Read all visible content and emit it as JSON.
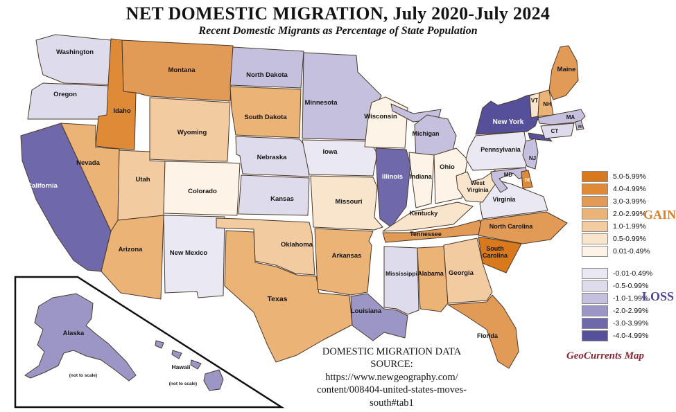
{
  "title": "NET DOMESTIC MIGRATION, July 2020-July 2024",
  "subtitle": "Recent Domestic Migrants as Percentage of State Population",
  "legend": {
    "gain_label": "GAIN",
    "gain_color": "#D97E26",
    "loss_label": "LOSS",
    "loss_color": "#4B4596",
    "gain": [
      {
        "range": "5.0-5.99%",
        "color": "#D9791E"
      },
      {
        "range": "4.0-4.99%",
        "color": "#DF8A37"
      },
      {
        "range": "3.0-3.99%",
        "color": "#E29A57"
      },
      {
        "range": "2.0-2.99%",
        "color": "#ECB377"
      },
      {
        "range": "1.0-1.99%",
        "color": "#F3CBA0"
      },
      {
        "range": "0.5-0.99%",
        "color": "#F9E4CC"
      },
      {
        "range": "0.01-0.49%",
        "color": "#FDF3E6"
      }
    ],
    "loss": [
      {
        "range": "-0.01-0.49%",
        "color": "#E9E8F3"
      },
      {
        "range": "-0.5-0.99%",
        "color": "#DEDCEC"
      },
      {
        "range": "-1.0-1.99%",
        "color": "#C4C0DE"
      },
      {
        "range": "-2.0-2.99%",
        "color": "#9C96C6"
      },
      {
        "range": "-3.0-3.99%",
        "color": "#6F69AB"
      },
      {
        "range": "-4.0-4.99%",
        "color": "#56509B"
      }
    ]
  },
  "source_lines": [
    "DOMESTIC MIGRATION DATA",
    "SOURCE:",
    "https://www.newgeography.com/",
    "content/008404-united-states-moves-",
    "south#tab1"
  ],
  "attribution": "GeoCurrents Map",
  "attribution_color": "#8B2332",
  "map": {
    "states": [
      {
        "abbr": "WA",
        "name": "Washington",
        "label": "Washington",
        "category": "-0.5-0.99%"
      },
      {
        "abbr": "OR",
        "name": "Oregon",
        "label": "Oregon",
        "category": "-0.5-0.99%"
      },
      {
        "abbr": "CA",
        "name": "California",
        "label": "California",
        "category": "-3.0-3.99%"
      },
      {
        "abbr": "ID",
        "name": "Idaho",
        "label": "Idaho",
        "category": "4.0-4.99%"
      },
      {
        "abbr": "NV",
        "name": "Nevada",
        "label": "Nevada",
        "category": "2.0-2.99%"
      },
      {
        "abbr": "UT",
        "name": "Utah",
        "label": "Utah",
        "category": "1.0-1.99%"
      },
      {
        "abbr": "AZ",
        "name": "Arizona",
        "label": "Arizona",
        "category": "2.0-2.99%"
      },
      {
        "abbr": "MT",
        "name": "Montana",
        "label": "Montana",
        "category": "3.0-3.99%"
      },
      {
        "abbr": "WY",
        "name": "Wyoming",
        "label": "Wyoming",
        "category": "1.0-1.99%"
      },
      {
        "abbr": "CO",
        "name": "Colorado",
        "label": "Colorado",
        "category": "0.01-0.49%"
      },
      {
        "abbr": "NM",
        "name": "New Mexico",
        "label": "New Mexico",
        "category": "-0.01-0.49%"
      },
      {
        "abbr": "ND",
        "name": "North Dakota",
        "label": "North Dakota",
        "category": "-1.0-1.99%"
      },
      {
        "abbr": "SD",
        "name": "South Dakota",
        "label": "South Dakota",
        "category": "2.0-2.99%"
      },
      {
        "abbr": "NE",
        "name": "Nebraska",
        "label": "Nebraska",
        "category": "-0.5-0.99%"
      },
      {
        "abbr": "KS",
        "name": "Kansas",
        "label": "Kansas",
        "category": "-0.5-0.99%"
      },
      {
        "abbr": "OK",
        "name": "Oklahoma",
        "label": "Oklahoma",
        "category": "1.0-1.99%"
      },
      {
        "abbr": "TX",
        "name": "Texas",
        "label": "Texas",
        "category": "2.0-2.99%"
      },
      {
        "abbr": "MN",
        "name": "Minnesota",
        "label": "Minnesota",
        "category": "-1.0-1.99%"
      },
      {
        "abbr": "IA",
        "name": "Iowa",
        "label": "Iowa",
        "category": "-0.01-0.49%"
      },
      {
        "abbr": "MO",
        "name": "Missouri",
        "label": "Missouri",
        "category": "0.5-0.99%"
      },
      {
        "abbr": "AR",
        "name": "Arkansas",
        "label": "Arkansas",
        "category": "2.0-2.99%"
      },
      {
        "abbr": "LA",
        "name": "Louisiana",
        "label": "Louisiana",
        "category": "-2.0-2.99%"
      },
      {
        "abbr": "WI",
        "name": "Wisconsin",
        "label": "Wisconsin",
        "category": "0.01-0.49%"
      },
      {
        "abbr": "IL",
        "name": "Illinois",
        "label": "Illinois",
        "category": "-3.0-3.99%"
      },
      {
        "abbr": "MI",
        "name": "Michigan",
        "label": "Michigan",
        "category": "-1.0-1.99%"
      },
      {
        "abbr": "IN",
        "name": "Indiana",
        "label": "Indiana",
        "category": "0.01-0.49%"
      },
      {
        "abbr": "OH",
        "name": "Ohio",
        "label": "Ohio",
        "category": "0.01-0.49%"
      },
      {
        "abbr": "KY",
        "name": "Kentucky",
        "label": "Kentucky",
        "category": "0.5-0.99%"
      },
      {
        "abbr": "TN",
        "name": "Tennessee",
        "label": "Tennessee",
        "category": "3.0-3.99%"
      },
      {
        "abbr": "MS",
        "name": "Mississippi",
        "label": "Mississippi",
        "category": "-0.5-0.99%"
      },
      {
        "abbr": "AL",
        "name": "Alabama",
        "label": "Alabama",
        "category": "2.0-2.99%"
      },
      {
        "abbr": "GA",
        "name": "Georgia",
        "label": "Georgia",
        "category": "1.0-1.99%"
      },
      {
        "abbr": "FL",
        "name": "Florida",
        "label": "Florida",
        "category": "3.0-3.99%"
      },
      {
        "abbr": "SC",
        "name": "South Carolina",
        "label": "South Carolina",
        "category": "5.0-5.99%"
      },
      {
        "abbr": "NC",
        "name": "North Carolina",
        "label": "North Carolina",
        "category": "3.0-3.99%"
      },
      {
        "abbr": "VA",
        "name": "Virginia",
        "label": "Virginia",
        "category": "-0.01-0.49%"
      },
      {
        "abbr": "WV",
        "name": "West Virginia",
        "label": "West Virginia",
        "category": "0.5-0.99%"
      },
      {
        "abbr": "PA",
        "name": "Pennsylvania",
        "label": "Pennsylvania",
        "category": "-0.01-0.49%"
      },
      {
        "abbr": "NY",
        "name": "New York",
        "label": "New York",
        "category": "-4.0-4.99%"
      },
      {
        "abbr": "VT",
        "name": "Vermont",
        "label": "VT",
        "category": "0.5-0.99%"
      },
      {
        "abbr": "NH",
        "name": "New Hampshire",
        "label": "NH",
        "category": "2.0-2.99%"
      },
      {
        "abbr": "ME",
        "name": "Maine",
        "label": "Maine",
        "category": "3.0-3.99%"
      },
      {
        "abbr": "MA",
        "name": "Massachusetts",
        "label": "MA",
        "category": "-1.0-1.99%"
      },
      {
        "abbr": "RI",
        "name": "Rhode Island",
        "label": "RI",
        "category": "-1.0-1.99%"
      },
      {
        "abbr": "CT",
        "name": "Connecticut",
        "label": "CT",
        "category": "-0.5-0.99%"
      },
      {
        "abbr": "NJ",
        "name": "New Jersey",
        "label": "NJ",
        "category": "-1.0-1.99%"
      },
      {
        "abbr": "MD",
        "name": "Maryland",
        "label": "MD",
        "category": "-1.0-1.99%"
      },
      {
        "abbr": "DE",
        "name": "Delaware",
        "label": "DE",
        "category": "4.0-4.99%"
      },
      {
        "abbr": "AK",
        "name": "Alaska",
        "label": "Alaska",
        "note": "(not to scale)",
        "category": "-2.0-2.99%"
      },
      {
        "abbr": "HI",
        "name": "Hawaii",
        "label": "Hawaii",
        "note": "(not to scale)",
        "category": "-2.0-2.99%"
      }
    ]
  }
}
